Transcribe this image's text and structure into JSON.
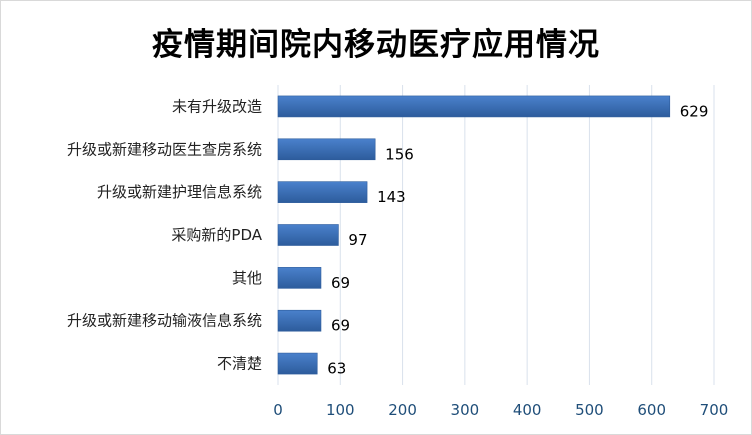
{
  "chart_data": {
    "type": "bar",
    "orientation": "horizontal",
    "title": "疫情期间院内移动医疗应用情况",
    "categories": [
      "未有升级改造",
      "升级或新建移动医生查房系统",
      "升级或新建护理信息系统",
      "采购新的PDA",
      "其他",
      "升级或新建移动输液信息系统",
      "不清楚"
    ],
    "values": [
      629,
      156,
      143,
      97,
      69,
      69,
      63
    ],
    "xlabel": "",
    "ylabel": "",
    "xlim": [
      0,
      700
    ],
    "x_ticks": [
      0,
      100,
      200,
      300,
      400,
      500,
      600,
      700
    ],
    "grid": "vertical",
    "legend": "none",
    "bar_color": "#3a6fb6",
    "bar_gradient_light": "#4a81cc",
    "bar_gradient_dark": "#2d5c9c",
    "grid_color": "#d9e1ec",
    "tick_color": "#1f4e79"
  }
}
